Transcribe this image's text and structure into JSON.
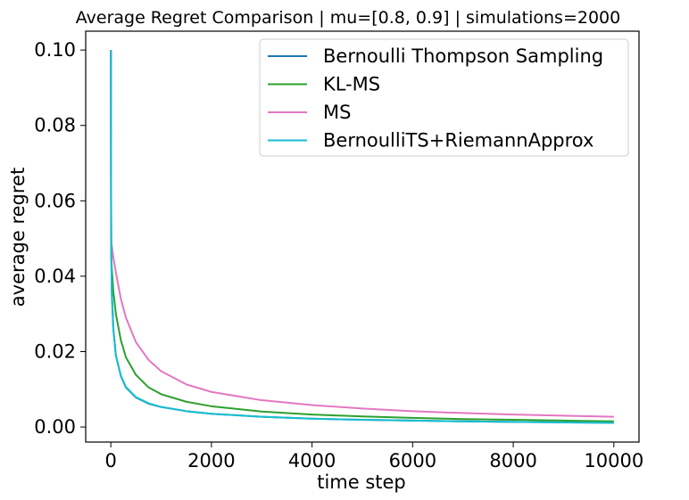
{
  "chart_data": {
    "type": "line",
    "title": "Average Regret Comparison | mu=[0.8, 0.9] | simulations=2000",
    "xlabel": "time step",
    "ylabel": "average regret",
    "xlim": [
      -500,
      10500
    ],
    "ylim": [
      -0.004,
      0.105
    ],
    "xticks": [
      0,
      2000,
      4000,
      6000,
      8000,
      10000
    ],
    "xtick_labels": [
      "0",
      "2000",
      "4000",
      "6000",
      "8000",
      "10000"
    ],
    "yticks": [
      0.0,
      0.02,
      0.04,
      0.06,
      0.08,
      0.1
    ],
    "ytick_labels": [
      "0.00",
      "0.02",
      "0.04",
      "0.06",
      "0.08",
      "0.10"
    ],
    "grid": false,
    "legend_position": "upper-right",
    "x": [
      1,
      5,
      10,
      20,
      50,
      100,
      200,
      300,
      500,
      750,
      1000,
      1500,
      2000,
      3000,
      4000,
      5000,
      6000,
      7000,
      8000,
      9000,
      10000
    ],
    "series": [
      {
        "name": "Bernoulli Thompson Sampling",
        "color": "#1f77b4",
        "values": [
          0.1,
          0.062,
          0.045,
          0.035,
          0.026,
          0.019,
          0.0135,
          0.0105,
          0.0078,
          0.0062,
          0.0053,
          0.0042,
          0.0035,
          0.0027,
          0.0022,
          0.0019,
          0.0017,
          0.0015,
          0.00135,
          0.00122,
          0.00112
        ]
      },
      {
        "name": "KL-MS",
        "color": "#2ca02c",
        "values": [
          0.1,
          0.05,
          0.045,
          0.042,
          0.036,
          0.03,
          0.023,
          0.0185,
          0.0138,
          0.0105,
          0.0087,
          0.0067,
          0.0055,
          0.0041,
          0.0033,
          0.0028,
          0.0024,
          0.0021,
          0.0019,
          0.0017,
          0.0015
        ]
      },
      {
        "name": "MS",
        "color": "#e377c2",
        "values": [
          0.1,
          0.05,
          0.049,
          0.048,
          0.045,
          0.041,
          0.034,
          0.029,
          0.0225,
          0.0178,
          0.0148,
          0.0113,
          0.0093,
          0.0071,
          0.0058,
          0.0049,
          0.0042,
          0.0037,
          0.0033,
          0.003,
          0.0027
        ]
      },
      {
        "name": "BernoulliTS+RiemannApprox",
        "color": "#17becf",
        "values": [
          0.1,
          0.062,
          0.046,
          0.036,
          0.026,
          0.019,
          0.0136,
          0.0106,
          0.0079,
          0.0063,
          0.0053,
          0.0042,
          0.0035,
          0.0027,
          0.0022,
          0.0019,
          0.0017,
          0.0015,
          0.00135,
          0.00122,
          0.00112
        ]
      }
    ]
  }
}
